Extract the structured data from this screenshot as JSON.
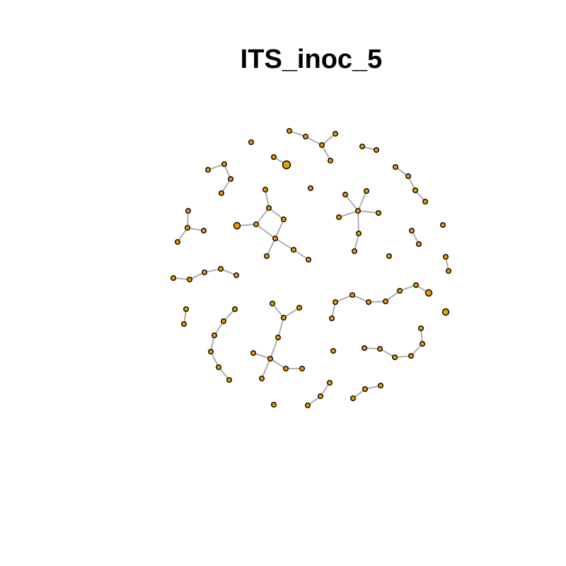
{
  "title": "ITS_inoc_5",
  "colors": {
    "node_fill": "#E69F00",
    "node_stroke": "#000000",
    "edge": "#A6A6A6",
    "background": "#FFFFFF"
  }
}
